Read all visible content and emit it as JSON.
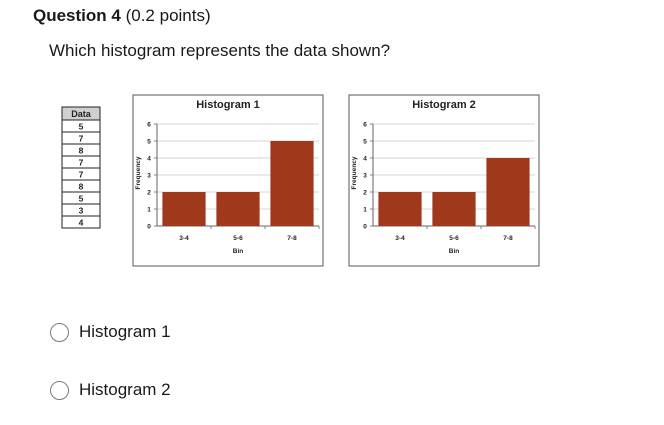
{
  "question": {
    "number_label": "Question 4",
    "points_label": "(0.2 points)",
    "text": "Which histogram represents the data shown?"
  },
  "data_table": {
    "header": "Data",
    "values": [
      "5",
      "7",
      "8",
      "7",
      "7",
      "8",
      "5",
      "3",
      "4"
    ]
  },
  "chart_data": [
    {
      "type": "bar",
      "title": "Histogram 1",
      "xlabel": "Bin",
      "ylabel": "Frequency",
      "categories": [
        "3-4",
        "5-6",
        "7-8"
      ],
      "values": [
        2,
        2,
        5
      ],
      "ylim": [
        0,
        6
      ],
      "yticks": [
        "0",
        "1",
        "2",
        "3",
        "4",
        "5",
        "6"
      ],
      "grid": true,
      "bar_color": "#a0391c"
    },
    {
      "type": "bar",
      "title": "Histogram 2",
      "xlabel": "Bin",
      "ylabel": "Frequency",
      "categories": [
        "3-4",
        "5-6",
        "7-8"
      ],
      "values": [
        2,
        2,
        4
      ],
      "ylim": [
        0,
        6
      ],
      "yticks": [
        "0",
        "1",
        "2",
        "3",
        "4",
        "5",
        "6"
      ],
      "grid": true,
      "bar_color": "#a0391c"
    }
  ],
  "options": [
    {
      "label": "Histogram 1",
      "selected": false
    },
    {
      "label": "Histogram 2",
      "selected": false
    }
  ]
}
